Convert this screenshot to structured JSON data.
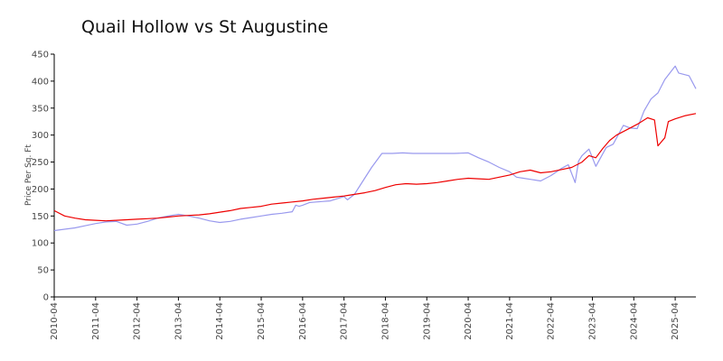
{
  "chart_data": {
    "type": "line",
    "title": "Quail Hollow vs St Augustine",
    "xlabel": "",
    "ylabel": "Price Per Sq. Ft",
    "ylim": [
      0,
      450
    ],
    "xlim": [
      "2010-04",
      "2025-10"
    ],
    "y_ticks": [
      0,
      50,
      100,
      150,
      200,
      250,
      300,
      350,
      400,
      450
    ],
    "x_ticks": [
      "2010-04",
      "2011-04",
      "2012-04",
      "2013-04",
      "2014-04",
      "2015-04",
      "2016-04",
      "2017-04",
      "2018-04",
      "2019-04",
      "2020-04",
      "2021-04",
      "2022-04",
      "2023-04",
      "2024-04",
      "2025-04"
    ],
    "grid": false,
    "legend": "none",
    "series": [
      {
        "color": "#9999ee",
        "points": [
          [
            "2010-04",
            123
          ],
          [
            "2010-10",
            128
          ],
          [
            "2011-01",
            132
          ],
          [
            "2011-04",
            136
          ],
          [
            "2011-07",
            139
          ],
          [
            "2011-10",
            140
          ],
          [
            "2012-01",
            133
          ],
          [
            "2012-04",
            135
          ],
          [
            "2012-07",
            140
          ],
          [
            "2012-10",
            146
          ],
          [
            "2013-01",
            150
          ],
          [
            "2013-04",
            153
          ],
          [
            "2013-07",
            150
          ],
          [
            "2013-10",
            146
          ],
          [
            "2014-01",
            141
          ],
          [
            "2014-04",
            138
          ],
          [
            "2014-07",
            140
          ],
          [
            "2014-10",
            144
          ],
          [
            "2015-01",
            147
          ],
          [
            "2015-04",
            150
          ],
          [
            "2015-07",
            153
          ],
          [
            "2015-10",
            155
          ],
          [
            "2016-01",
            158
          ],
          [
            "2016-02",
            170
          ],
          [
            "2016-03",
            168
          ],
          [
            "2016-04",
            170
          ],
          [
            "2016-06",
            175
          ],
          [
            "2016-08",
            176
          ],
          [
            "2016-10",
            177
          ],
          [
            "2016-12",
            178
          ],
          [
            "2017-02",
            182
          ],
          [
            "2017-04",
            186
          ],
          [
            "2017-05",
            180
          ],
          [
            "2017-07",
            190
          ],
          [
            "2017-09",
            210
          ],
          [
            "2017-12",
            240
          ],
          [
            "2018-03",
            266
          ],
          [
            "2018-06",
            266
          ],
          [
            "2018-09",
            267
          ],
          [
            "2018-12",
            266
          ],
          [
            "2019-03",
            266
          ],
          [
            "2019-06",
            266
          ],
          [
            "2019-09",
            266
          ],
          [
            "2019-12",
            266
          ],
          [
            "2020-04",
            267
          ],
          [
            "2020-07",
            258
          ],
          [
            "2020-10",
            250
          ],
          [
            "2021-01",
            240
          ],
          [
            "2021-04",
            232
          ],
          [
            "2021-06",
            222
          ],
          [
            "2021-08",
            220
          ],
          [
            "2021-10",
            218
          ],
          [
            "2022-01",
            215
          ],
          [
            "2022-04",
            225
          ],
          [
            "2022-07",
            238
          ],
          [
            "2022-09",
            245
          ],
          [
            "2022-11",
            212
          ],
          [
            "2022-12",
            252
          ],
          [
            "2023-01",
            262
          ],
          [
            "2023-03",
            274
          ],
          [
            "2023-05",
            242
          ],
          [
            "2023-08",
            277
          ],
          [
            "2023-10",
            283
          ],
          [
            "2024-01",
            318
          ],
          [
            "2024-03",
            313
          ],
          [
            "2024-05",
            312
          ],
          [
            "2024-07",
            345
          ],
          [
            "2024-09",
            367
          ],
          [
            "2024-11",
            378
          ],
          [
            "2025-01",
            403
          ],
          [
            "2025-04",
            428
          ],
          [
            "2025-05",
            415
          ],
          [
            "2025-08",
            410
          ],
          [
            "2025-10",
            386
          ]
        ]
      },
      {
        "color": "#ee0000",
        "points": [
          [
            "2010-04",
            160
          ],
          [
            "2010-07",
            150
          ],
          [
            "2010-10",
            146
          ],
          [
            "2011-01",
            143
          ],
          [
            "2011-04",
            142
          ],
          [
            "2011-07",
            141
          ],
          [
            "2011-10",
            142
          ],
          [
            "2012-01",
            143
          ],
          [
            "2012-04",
            144
          ],
          [
            "2012-07",
            145
          ],
          [
            "2012-10",
            146
          ],
          [
            "2013-01",
            148
          ],
          [
            "2013-04",
            150
          ],
          [
            "2013-07",
            151
          ],
          [
            "2013-10",
            152
          ],
          [
            "2014-01",
            154
          ],
          [
            "2014-04",
            157
          ],
          [
            "2014-07",
            160
          ],
          [
            "2014-10",
            164
          ],
          [
            "2015-01",
            166
          ],
          [
            "2015-04",
            168
          ],
          [
            "2015-07",
            172
          ],
          [
            "2015-10",
            174
          ],
          [
            "2016-01",
            176
          ],
          [
            "2016-04",
            178
          ],
          [
            "2016-07",
            181
          ],
          [
            "2016-10",
            183
          ],
          [
            "2017-01",
            185
          ],
          [
            "2017-04",
            187
          ],
          [
            "2017-07",
            190
          ],
          [
            "2017-10",
            193
          ],
          [
            "2018-01",
            197
          ],
          [
            "2018-04",
            203
          ],
          [
            "2018-07",
            208
          ],
          [
            "2018-10",
            210
          ],
          [
            "2019-01",
            209
          ],
          [
            "2019-04",
            210
          ],
          [
            "2019-07",
            212
          ],
          [
            "2019-10",
            215
          ],
          [
            "2020-01",
            218
          ],
          [
            "2020-04",
            220
          ],
          [
            "2020-07",
            219
          ],
          [
            "2020-10",
            218
          ],
          [
            "2021-01",
            222
          ],
          [
            "2021-04",
            226
          ],
          [
            "2021-07",
            232
          ],
          [
            "2021-10",
            235
          ],
          [
            "2022-01",
            230
          ],
          [
            "2022-04",
            232
          ],
          [
            "2022-07",
            236
          ],
          [
            "2022-10",
            240
          ],
          [
            "2023-01",
            250
          ],
          [
            "2023-03",
            262
          ],
          [
            "2023-05",
            258
          ],
          [
            "2023-07",
            275
          ],
          [
            "2023-09",
            290
          ],
          [
            "2023-11",
            300
          ],
          [
            "2024-02",
            310
          ],
          [
            "2024-05",
            320
          ],
          [
            "2024-08",
            332
          ],
          [
            "2024-10",
            328
          ],
          [
            "2024-11",
            280
          ],
          [
            "2025-01",
            295
          ],
          [
            "2025-02",
            325
          ],
          [
            "2025-04",
            330
          ],
          [
            "2025-07",
            336
          ],
          [
            "2025-10",
            340
          ]
        ]
      }
    ]
  }
}
